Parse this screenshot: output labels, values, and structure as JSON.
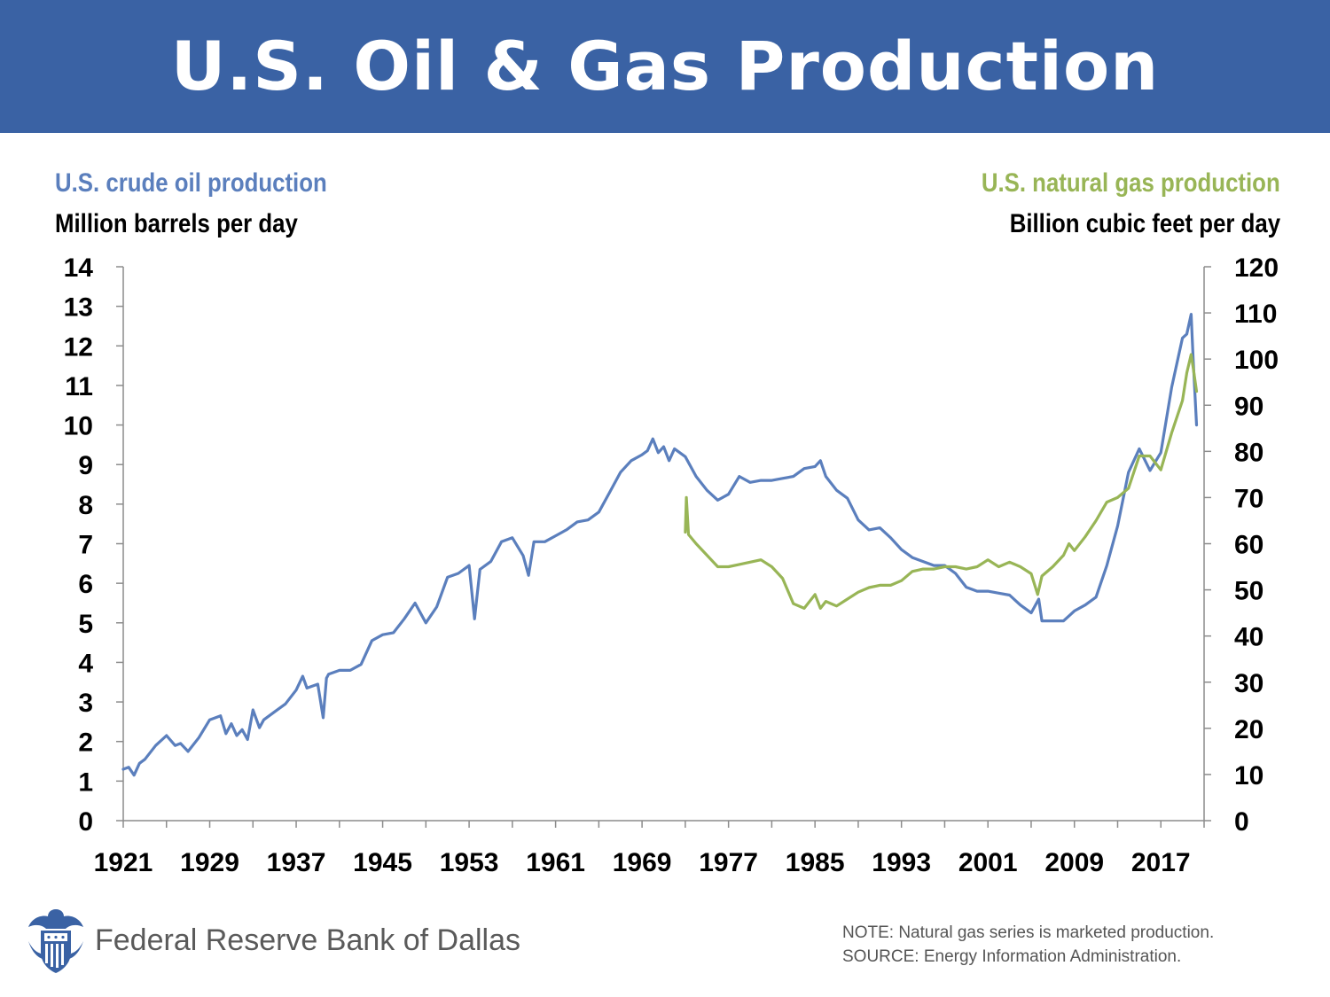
{
  "header": {
    "title": "U.S. Oil & Gas Production"
  },
  "colors": {
    "banner": "#3a62a4",
    "oil": "#5b7fbd",
    "gas": "#98b556"
  },
  "chart_data": {
    "type": "line",
    "title": "U.S. Oil & Gas Production",
    "left_axis": {
      "title": "U.S. crude oil production",
      "unit": "Million barrels per day",
      "range": [
        0,
        14
      ],
      "ticks": [
        "0",
        "1",
        "2",
        "3",
        "4",
        "5",
        "6",
        "7",
        "8",
        "9",
        "10",
        "11",
        "12",
        "13",
        "14"
      ]
    },
    "right_axis": {
      "title": "U.S. natural gas production",
      "unit": "Billion cubic feet per day",
      "range": [
        0,
        120
      ],
      "ticks": [
        "0",
        "10",
        "20",
        "30",
        "40",
        "50",
        "60",
        "70",
        "80",
        "90",
        "100",
        "110",
        "120"
      ]
    },
    "x_axis": {
      "range": [
        1921,
        2021
      ],
      "ticks": [
        "1921",
        "1929",
        "1937",
        "1945",
        "1953",
        "1961",
        "1969",
        "1977",
        "1985",
        "1993",
        "2001",
        "2009",
        "2017"
      ]
    },
    "grid": false,
    "series": [
      {
        "name": "U.S. crude oil production",
        "axis": "left",
        "color": "#5b7fbd",
        "x": [
          1921,
          1921.5,
          1922,
          1922.5,
          1923,
          1924,
          1925,
          1925.8,
          1926.3,
          1927,
          1928,
          1929,
          1930,
          1930.5,
          1931,
          1931.5,
          1932,
          1932.5,
          1933,
          1933.6,
          1934,
          1935,
          1936,
          1937,
          1937.6,
          1938,
          1939,
          1939.5,
          1939.8,
          1940,
          1941,
          1942,
          1943,
          1944,
          1945,
          1946,
          1947,
          1948,
          1949,
          1950,
          1951,
          1952,
          1953,
          1953.5,
          1954,
          1955,
          1956,
          1957,
          1958,
          1958.5,
          1959,
          1960,
          1961,
          1962,
          1963,
          1964,
          1965,
          1966,
          1967,
          1968,
          1969,
          1969.5,
          1970,
          1970.5,
          1971,
          1971.5,
          1972,
          1973,
          1974,
          1975,
          1976,
          1977,
          1978,
          1979,
          1980,
          1981,
          1982,
          1983,
          1984,
          1985,
          1985.5,
          1986,
          1987,
          1988,
          1989,
          1990,
          1991,
          1992,
          1993,
          1994,
          1995,
          1996,
          1997,
          1998,
          1999,
          2000,
          2001,
          2002,
          2003,
          2004,
          2005,
          2005.7,
          2006,
          2007,
          2008,
          2008.6,
          2009,
          2010,
          2011,
          2012,
          2013,
          2014,
          2015,
          2016,
          2017,
          2018,
          2019,
          2019.4,
          2019.8,
          2020,
          2020.3
        ],
        "values": [
          1.3,
          1.35,
          1.15,
          1.45,
          1.55,
          1.9,
          2.15,
          1.9,
          1.95,
          1.75,
          2.1,
          2.55,
          2.65,
          2.2,
          2.45,
          2.15,
          2.3,
          2.05,
          2.8,
          2.35,
          2.55,
          2.75,
          2.95,
          3.3,
          3.65,
          3.35,
          3.45,
          2.6,
          3.6,
          3.7,
          3.8,
          3.8,
          3.95,
          4.55,
          4.7,
          4.75,
          5.1,
          5.5,
          5.0,
          5.4,
          6.15,
          6.25,
          6.45,
          5.1,
          6.35,
          6.55,
          7.05,
          7.15,
          6.7,
          6.2,
          7.05,
          7.05,
          7.2,
          7.35,
          7.55,
          7.6,
          7.8,
          8.3,
          8.8,
          9.1,
          9.25,
          9.35,
          9.65,
          9.3,
          9.45,
          9.1,
          9.4,
          9.2,
          8.7,
          8.35,
          8.1,
          8.25,
          8.7,
          8.55,
          8.6,
          8.6,
          8.65,
          8.7,
          8.9,
          8.95,
          9.1,
          8.7,
          8.35,
          8.15,
          7.6,
          7.35,
          7.4,
          7.15,
          6.85,
          6.65,
          6.55,
          6.45,
          6.45,
          6.25,
          5.9,
          5.8,
          5.8,
          5.75,
          5.7,
          5.45,
          5.25,
          5.6,
          5.05,
          5.05,
          5.05,
          5.2,
          5.3,
          5.45,
          5.65,
          6.45,
          7.45,
          8.8,
          9.4,
          8.85,
          9.3,
          10.95,
          12.2,
          12.3,
          12.8,
          11.6,
          10.0
        ]
      },
      {
        "name": "U.S. natural gas production",
        "axis": "right",
        "color": "#98b556",
        "x": [
          1973,
          1973.1,
          1973.3,
          1974,
          1975,
          1976,
          1977,
          1978,
          1979,
          1980,
          1981,
          1982,
          1983,
          1984,
          1985,
          1985.5,
          1986,
          1987,
          1988,
          1989,
          1990,
          1991,
          1992,
          1993,
          1994,
          1995,
          1996,
          1997,
          1998,
          1999,
          2000,
          2001,
          2002,
          2003,
          2004,
          2005,
          2005.6,
          2006,
          2007,
          2008,
          2008.5,
          2009,
          2010,
          2011,
          2012,
          2013,
          2014,
          2015,
          2016,
          2017,
          2018,
          2019,
          2019.4,
          2019.8,
          2020,
          2020.3
        ],
        "values": [
          62.5,
          70,
          62,
          60,
          57.5,
          55,
          55,
          55.5,
          56,
          56.5,
          55,
          52.5,
          47,
          46,
          49,
          46,
          47.5,
          46.5,
          48,
          49.5,
          50.5,
          51,
          51,
          52,
          54,
          54.5,
          54.5,
          55,
          55,
          54.5,
          55,
          56.5,
          55,
          56,
          55,
          53.5,
          49,
          53,
          55,
          57.5,
          60,
          58.5,
          61.5,
          65,
          69,
          70,
          72,
          79,
          79,
          76,
          84,
          91,
          97,
          101,
          98,
          93
        ]
      }
    ]
  },
  "footer": {
    "org": "Federal Reserve Bank of Dallas",
    "note": "NOTE: Natural gas series is marketed production.",
    "source": "SOURCE: Energy Information Administration."
  }
}
